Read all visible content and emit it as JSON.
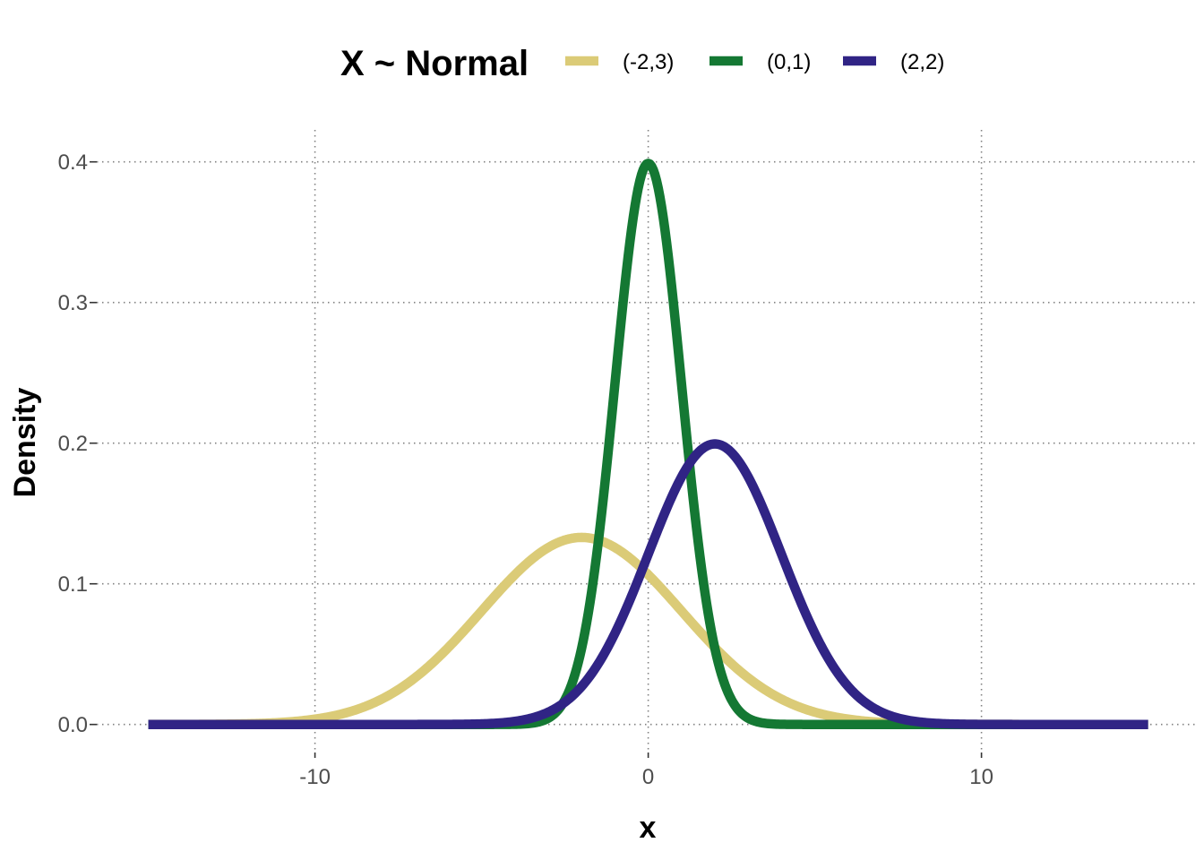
{
  "chart_data": {
    "type": "line",
    "title": "",
    "xlabel": "x",
    "ylabel": "Density",
    "xlim": [
      -15,
      15
    ],
    "ylim": [
      0,
      0.4
    ],
    "x_ticks": [
      -10,
      0,
      10
    ],
    "x_tick_labels": [
      "-10",
      "0",
      "10"
    ],
    "y_ticks": [
      0.0,
      0.1,
      0.2,
      0.3,
      0.4
    ],
    "y_tick_labels": [
      "0.0",
      "0.1",
      "0.2",
      "0.3",
      "0.4"
    ],
    "grid": true,
    "legend": {
      "title": "X ~ Normal",
      "placement": "top"
    },
    "series": [
      {
        "name": "(-2,3)",
        "mean": -2,
        "sd": 3,
        "color": "#dbcb77"
      },
      {
        "name": "(0,1)",
        "mean": 0,
        "sd": 1,
        "color": "#147833"
      },
      {
        "name": "(2,2)",
        "mean": 2,
        "sd": 2,
        "color": "#302485"
      }
    ]
  }
}
